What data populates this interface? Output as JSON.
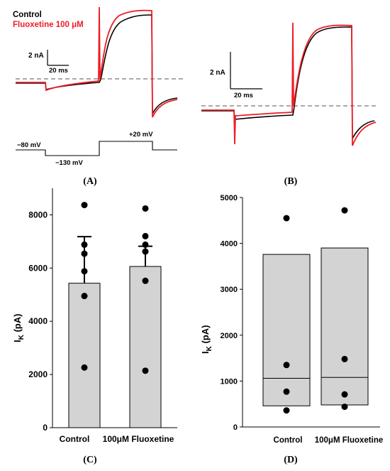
{
  "panels": {
    "A": {
      "label": "(A)",
      "legend": [
        {
          "name": "Control",
          "color": "#000000"
        },
        {
          "name": "Fluoxetine 100 μM",
          "color": "#ee1c24"
        }
      ],
      "scale_bar": {
        "current": "2 nA",
        "time": "20 ms"
      },
      "protocol_labels": [
        "−80 mV",
        "−130 mV",
        "+20 mV"
      ]
    },
    "B": {
      "label": "(B)",
      "scale_bar": {
        "current": "2 nA",
        "time": "20 ms"
      }
    },
    "C": {
      "label": "(C)"
    },
    "D": {
      "label": "(D)"
    }
  },
  "chart_data": [
    {
      "panel": "C",
      "type": "bar",
      "ylabel": "I",
      "ylabel_sub": "K",
      "ylabel_unit": " (pA)",
      "ylim": [
        0,
        9000
      ],
      "yticks": [
        0,
        2000,
        4000,
        6000,
        8000
      ],
      "categories": [
        "Control",
        "100μM Fluoxetine"
      ],
      "values": [
        5430,
        6060
      ],
      "error": [
        1750,
        760
      ],
      "points": [
        [
          8370,
          6880,
          6540,
          5880,
          4950,
          2260
        ],
        [
          8240,
          7200,
          6880,
          6620,
          5520,
          2140
        ]
      ],
      "bar_color": "#d3d3d3"
    },
    {
      "panel": "D",
      "type": "box",
      "ylabel": "I",
      "ylabel_sub": "K",
      "ylabel_unit": " (pA)",
      "ylim": [
        0,
        5000
      ],
      "yticks": [
        0,
        1000,
        2000,
        3000,
        4000,
        5000
      ],
      "categories": [
        "Control",
        "100μM Fluoxetine"
      ],
      "boxes": [
        {
          "q1": 460,
          "median": 1060,
          "q3": 3760
        },
        {
          "q1": 480,
          "median": 1080,
          "q3": 3900
        }
      ],
      "points": [
        [
          4550,
          1350,
          770,
          360
        ],
        [
          4720,
          1480,
          710,
          440
        ]
      ],
      "box_color": "#d3d3d3"
    }
  ]
}
